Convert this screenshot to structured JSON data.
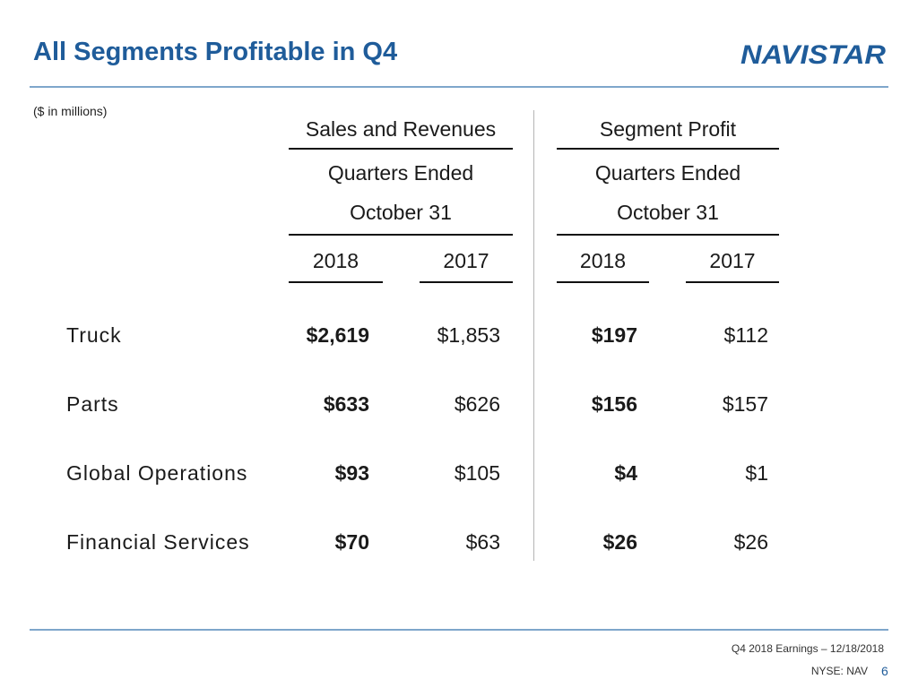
{
  "slide": {
    "title": "All Segments Profitable in Q4",
    "unit_note": "($ in millions)",
    "logo_text": "NAVISTAR",
    "brand_color": "#1f5c9a"
  },
  "table": {
    "groups": [
      {
        "title": "Sales and Revenues",
        "sub1": "Quarters Ended",
        "sub2": "October 31",
        "years": [
          "2018",
          "2017"
        ]
      },
      {
        "title": "Segment Profit",
        "sub1": "Quarters Ended",
        "sub2": "October 31",
        "years": [
          "2018",
          "2017"
        ]
      }
    ],
    "rows": [
      {
        "label": "Truck",
        "sales_2018": "$2,619",
        "sales_2017": "$1,853",
        "profit_2018": "$197",
        "profit_2017": "$112"
      },
      {
        "label": "Parts",
        "sales_2018": "$633",
        "sales_2017": "$626",
        "profit_2018": "$156",
        "profit_2017": "$157"
      },
      {
        "label": "Global Operations",
        "sales_2018": "$93",
        "sales_2017": "$105",
        "profit_2018": "$4",
        "profit_2017": "$1"
      },
      {
        "label": "Financial Services",
        "sales_2018": "$70",
        "sales_2017": "$63",
        "profit_2018": "$26",
        "profit_2017": "$26"
      }
    ]
  },
  "footer": {
    "event": "Q4 2018 Earnings – 12/18/2018",
    "ticker": "NYSE: NAV",
    "page": "6"
  }
}
